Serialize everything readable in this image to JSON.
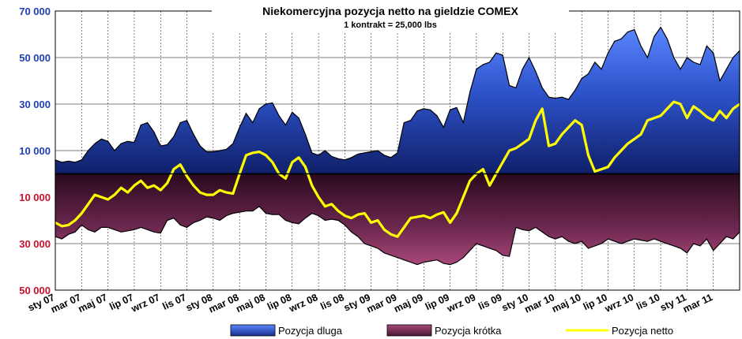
{
  "chart_data": {
    "type": "area",
    "title": "Niekomercyjna pozycja netto na gieldzie COMEX",
    "subtitle": "1 kontrakt = 25,000 lbs",
    "y_ticks": [
      {
        "value": 70000,
        "label": "70 000",
        "color": "#1f3fb4"
      },
      {
        "value": 50000,
        "label": "50 000",
        "color": "#1f3fb4"
      },
      {
        "value": 30000,
        "label": "30 000",
        "color": "#1f3fb4"
      },
      {
        "value": 10000,
        "label": "10 000",
        "color": "#1f3fb4"
      },
      {
        "value": -10000,
        "label": "10 000",
        "color": "#c8102e"
      },
      {
        "value": -30000,
        "label": "30 000",
        "color": "#c8102e"
      },
      {
        "value": -50000,
        "label": "50 000",
        "color": "#c8102e"
      }
    ],
    "ylim": [
      -50000,
      70000
    ],
    "x_range": [
      0,
      52
    ],
    "x_ticks": [
      {
        "x": 0,
        "label": "sty 07"
      },
      {
        "x": 2,
        "label": "mar 07"
      },
      {
        "x": 4,
        "label": "maj 07"
      },
      {
        "x": 6,
        "label": "lip 07"
      },
      {
        "x": 8,
        "label": "wrz 07"
      },
      {
        "x": 10,
        "label": "lis 07"
      },
      {
        "x": 12,
        "label": "sty 08"
      },
      {
        "x": 14,
        "label": "mar 08"
      },
      {
        "x": 16,
        "label": "maj 08"
      },
      {
        "x": 18,
        "label": "lip 08"
      },
      {
        "x": 20,
        "label": "wrz 08"
      },
      {
        "x": 22,
        "label": "lis 08"
      },
      {
        "x": 24,
        "label": "sty 09"
      },
      {
        "x": 26,
        "label": "mar 09"
      },
      {
        "x": 28,
        "label": "maj 09"
      },
      {
        "x": 30,
        "label": "lip 09"
      },
      {
        "x": 32,
        "label": "wrz 09"
      },
      {
        "x": 34,
        "label": "lis 09"
      },
      {
        "x": 36,
        "label": "sty 10"
      },
      {
        "x": 38,
        "label": "mar 10"
      },
      {
        "x": 40,
        "label": "maj 10"
      },
      {
        "x": 42,
        "label": "lip 10"
      },
      {
        "x": 44,
        "label": "wrz 10"
      },
      {
        "x": 46,
        "label": "lis 10"
      },
      {
        "x": 48,
        "label": "sty 11"
      },
      {
        "x": 50,
        "label": "mar 11"
      }
    ],
    "grid": true,
    "legend_position": "bottom",
    "series": [
      {
        "name": "Pozycja dluga",
        "color": "#1f3a93",
        "x": [
          0,
          0.5,
          1,
          1.5,
          2,
          2.5,
          3,
          3.5,
          4,
          4.5,
          5,
          5.5,
          6,
          6.5,
          7,
          7.5,
          8,
          8.5,
          9,
          9.5,
          10,
          10.5,
          11,
          11.5,
          12,
          12.5,
          13,
          13.5,
          14,
          14.5,
          15,
          15.5,
          16,
          16.5,
          17,
          17.5,
          18,
          18.5,
          19,
          19.5,
          20,
          20.5,
          21,
          21.5,
          22,
          22.5,
          23,
          23.5,
          24,
          24.5,
          25,
          25.5,
          26,
          26.5,
          27,
          27.5,
          28,
          28.5,
          29,
          29.5,
          30,
          30.5,
          31,
          31.5,
          32,
          32.5,
          33,
          33.5,
          34,
          34.5,
          35,
          35.5,
          36,
          36.5,
          37,
          37.5,
          38,
          38.5,
          39,
          39.5,
          40,
          40.5,
          41,
          41.5,
          42,
          42.5,
          43,
          43.5,
          44,
          44.5,
          45,
          45.5,
          46,
          46.5,
          47,
          47.5,
          48,
          48.5,
          49,
          49.5,
          50,
          50.5,
          51,
          51.5,
          52
        ],
        "values": [
          6000,
          5000,
          5500,
          5000,
          6000,
          10000,
          13000,
          15000,
          14000,
          10000,
          13000,
          14000,
          13500,
          21000,
          22000,
          18000,
          12000,
          12500,
          16000,
          22000,
          23000,
          17000,
          12000,
          9500,
          9500,
          10000,
          10500,
          13000,
          20000,
          26000,
          22000,
          28000,
          30000,
          30500,
          25000,
          21000,
          26500,
          24000,
          17000,
          9000,
          8000,
          10000,
          7500,
          6500,
          6000,
          7000,
          8500,
          9000,
          9500,
          10000,
          8000,
          7000,
          9000,
          22000,
          23000,
          27000,
          28000,
          27500,
          25000,
          20000,
          27500,
          28500,
          22000,
          35000,
          45000,
          47000,
          48000,
          52000,
          51000,
          38000,
          37000,
          45000,
          50000,
          44000,
          37000,
          33000,
          32500,
          33000,
          32000,
          36000,
          41000,
          43000,
          48000,
          45000,
          52000,
          57000,
          58000,
          61000,
          62000,
          55000,
          50000,
          59000,
          63000,
          58000,
          50000,
          45000,
          50000,
          48000,
          47000,
          55000,
          52000,
          40000,
          45000,
          50000,
          53000
        ]
      },
      {
        "name": "Pozycja krótka",
        "color": "#7a2a4f",
        "x": [
          0,
          0.5,
          1,
          1.5,
          2,
          2.5,
          3,
          3.5,
          4,
          4.5,
          5,
          5.5,
          6,
          6.5,
          7,
          7.5,
          8,
          8.5,
          9,
          9.5,
          10,
          10.5,
          11,
          11.5,
          12,
          12.5,
          13,
          13.5,
          14,
          14.5,
          15,
          15.5,
          16,
          16.5,
          17,
          17.5,
          18,
          18.5,
          19,
          19.5,
          20,
          20.5,
          21,
          21.5,
          22,
          22.5,
          23,
          23.5,
          24,
          24.5,
          25,
          25.5,
          26,
          26.5,
          27,
          27.5,
          28,
          28.5,
          29,
          29.5,
          30,
          30.5,
          31,
          31.5,
          32,
          32.5,
          33,
          33.5,
          34,
          34.5,
          35,
          35.5,
          36,
          36.5,
          37,
          37.5,
          38,
          38.5,
          39,
          39.5,
          40,
          40.5,
          41,
          41.5,
          42,
          42.5,
          43,
          43.5,
          44,
          44.5,
          45,
          45.5,
          46,
          46.5,
          47,
          47.5,
          48,
          48.5,
          49,
          49.5,
          50,
          50.5,
          51,
          51.5,
          52
        ],
        "values": [
          -27000,
          -28000,
          -26000,
          -25000,
          -22000,
          -24000,
          -25000,
          -23000,
          -23000,
          -24000,
          -25000,
          -24500,
          -24000,
          -23000,
          -24000,
          -25000,
          -25500,
          -20000,
          -19000,
          -22000,
          -23000,
          -21000,
          -20000,
          -18500,
          -19000,
          -20000,
          -18000,
          -17000,
          -16500,
          -16000,
          -16000,
          -14000,
          -17000,
          -17500,
          -17500,
          -20000,
          -21000,
          -21500,
          -19000,
          -17000,
          -18000,
          -20000,
          -19500,
          -20000,
          -22000,
          -25000,
          -27000,
          -30000,
          -31000,
          -32000,
          -34000,
          -35000,
          -36000,
          -37000,
          -38000,
          -39000,
          -38000,
          -37500,
          -37000,
          -38500,
          -39000,
          -38000,
          -36000,
          -33000,
          -30000,
          -31000,
          -32000,
          -33000,
          -35000,
          -35500,
          -23000,
          -24000,
          -24500,
          -23000,
          -25000,
          -27000,
          -28000,
          -27000,
          -29000,
          -30000,
          -29000,
          -32000,
          -31000,
          -30000,
          -28000,
          -29000,
          -30000,
          -29000,
          -28000,
          -28500,
          -29000,
          -28000,
          -29000,
          -30000,
          -31000,
          -32000,
          -34000,
          -30000,
          -31000,
          -28000,
          -33000,
          -30000,
          -27000,
          -28000,
          -25000
        ]
      },
      {
        "name": "Pozycja netto",
        "color": "#ffff00",
        "x": [
          0,
          0.5,
          1,
          1.5,
          2,
          2.5,
          3,
          3.5,
          4,
          4.5,
          5,
          5.5,
          6,
          6.5,
          7,
          7.5,
          8,
          8.5,
          9,
          9.5,
          10,
          10.5,
          11,
          11.5,
          12,
          12.5,
          13,
          13.5,
          14,
          14.5,
          15,
          15.5,
          16,
          16.5,
          17,
          17.5,
          18,
          18.5,
          19,
          19.5,
          20,
          20.5,
          21,
          21.5,
          22,
          22.5,
          23,
          23.5,
          24,
          24.5,
          25,
          25.5,
          26,
          26.5,
          27,
          27.5,
          28,
          28.5,
          29,
          29.5,
          30,
          30.5,
          31,
          31.5,
          32,
          32.5,
          33,
          33.5,
          34,
          34.5,
          35,
          35.5,
          36,
          36.5,
          37,
          37.5,
          38,
          38.5,
          39,
          39.5,
          40,
          40.5,
          41,
          41.5,
          42,
          42.5,
          43,
          43.5,
          44,
          44.5,
          45,
          45.5,
          46,
          46.5,
          47,
          47.5,
          48,
          48.5,
          49,
          49.5,
          50,
          50.5,
          51,
          51.5,
          52
        ],
        "values": [
          -21000,
          -22500,
          -22000,
          -20000,
          -17000,
          -13000,
          -9000,
          -10000,
          -11000,
          -9000,
          -6000,
          -8000,
          -5000,
          -3000,
          -6000,
          -5000,
          -7000,
          -4000,
          2000,
          4000,
          -1000,
          -5000,
          -8000,
          -9000,
          -9000,
          -7000,
          -8000,
          -8500,
          0,
          8000,
          9000,
          9500,
          8000,
          5000,
          0,
          -2000,
          5000,
          7000,
          3000,
          -5000,
          -10000,
          -14000,
          -13000,
          -16000,
          -18000,
          -19000,
          -17500,
          -17000,
          -21000,
          -20000,
          -24000,
          -26000,
          -27000,
          -23000,
          -19000,
          -18500,
          -18000,
          -19000,
          -17500,
          -16500,
          -21000,
          -17000,
          -10000,
          -3000,
          0,
          2000,
          -5000,
          0,
          5000,
          10000,
          11000,
          13000,
          15000,
          23000,
          28000,
          12000,
          13000,
          17000,
          20000,
          23000,
          21000,
          8000,
          1000,
          2000,
          3000,
          7000,
          10000,
          13000,
          15000,
          17000,
          23000,
          24000,
          25000,
          28000,
          31000,
          30000,
          24000,
          29000,
          27000,
          24500,
          23000,
          27000,
          24000,
          28000,
          30000
        ]
      }
    ]
  }
}
